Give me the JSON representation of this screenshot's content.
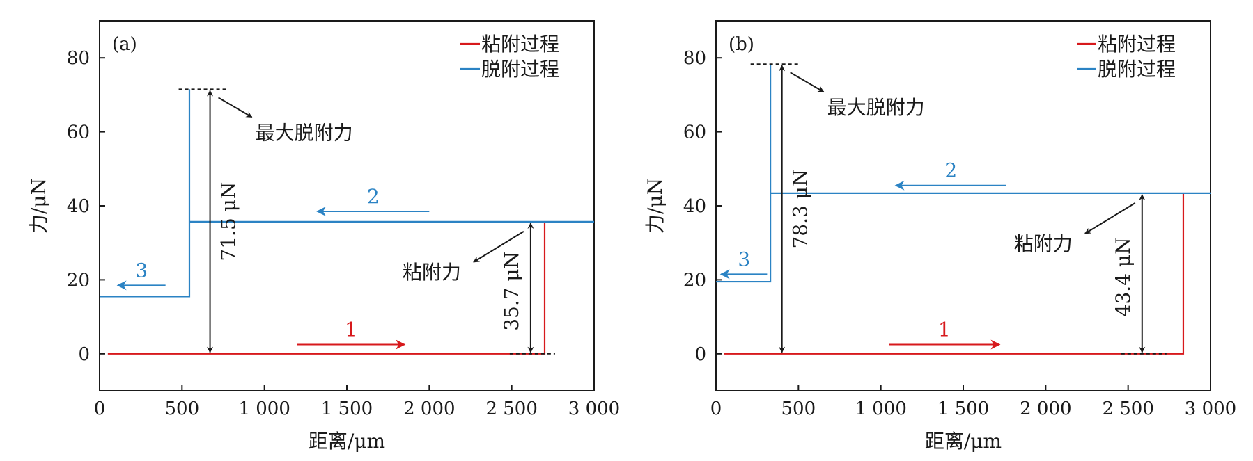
{
  "colors": {
    "adhesion": "#d7191c",
    "desorption": "#2b83c4",
    "annotation": "#1a1a1a"
  },
  "chart_data": [
    {
      "type": "line",
      "panel_label": "(a)",
      "xlabel": "距离/μm",
      "ylabel": "力/μN",
      "xlim": [
        0,
        3000
      ],
      "ylim": [
        -10,
        90
      ],
      "xticks": [
        0,
        500,
        1000,
        1500,
        2000,
        2500,
        3000
      ],
      "xtick_labels": [
        "0",
        "500",
        "1 000",
        "1 500",
        "2 000",
        "2 500",
        "3 000"
      ],
      "yticks": [
        0,
        20,
        40,
        60,
        80
      ],
      "ytick_labels": [
        "0",
        "20",
        "40",
        "60",
        "80"
      ],
      "legend": {
        "position": "top-right",
        "entries": [
          "粘附过程",
          "脱附过程"
        ]
      },
      "series": [
        {
          "name": "粘附过程",
          "color": "adhesion",
          "x": [
            50,
            2700,
            2700
          ],
          "y": [
            0,
            0,
            35.7
          ]
        },
        {
          "name": "脱附过程",
          "color": "desorption",
          "x": [
            3000,
            545,
            545,
            545,
            545,
            0
          ],
          "y": [
            35.7,
            35.7,
            71.5,
            71.5,
            15.5,
            15.5
          ]
        }
      ],
      "step_labels": [
        {
          "text": "1",
          "color": "adhesion",
          "x": [
            1200,
            1850
          ],
          "y": 2.5
        },
        {
          "text": "2",
          "color": "desorption",
          "x": [
            2000,
            1320
          ],
          "y": 38.5
        },
        {
          "text": "3",
          "color": "desorption",
          "x": [
            400,
            110
          ],
          "y": 18.5
        }
      ],
      "annotations": {
        "max_label": "最大脱附力",
        "max_value_label": "71.5 μN",
        "max_value": 71.5,
        "max_x": 670,
        "adh_label": "粘附力",
        "adh_value_label": "35.7 μN",
        "adh_value": 35.7,
        "adh_x": 2615
      }
    },
    {
      "type": "line",
      "panel_label": "(b)",
      "xlabel": "距离/μm",
      "ylabel": "力/μN",
      "xlim": [
        0,
        3000
      ],
      "ylim": [
        -10,
        90
      ],
      "xticks": [
        0,
        500,
        1000,
        1500,
        2000,
        2500,
        3000
      ],
      "xtick_labels": [
        "0",
        "500",
        "1 000",
        "1 500",
        "2 000",
        "2 500",
        "3 000"
      ],
      "yticks": [
        0,
        20,
        40,
        60,
        80
      ],
      "ytick_labels": [
        "0",
        "20",
        "40",
        "60",
        "80"
      ],
      "legend": {
        "position": "top-right",
        "entries": [
          "粘附过程",
          "脱附过程"
        ]
      },
      "series": [
        {
          "name": "粘附过程",
          "color": "adhesion",
          "x": [
            50,
            2835,
            2835
          ],
          "y": [
            0,
            0,
            43.4
          ]
        },
        {
          "name": "脱附过程",
          "color": "desorption",
          "x": [
            3000,
            330,
            330,
            330,
            330,
            0
          ],
          "y": [
            43.4,
            43.4,
            78.3,
            78.3,
            19.5,
            19.5
          ]
        }
      ],
      "step_labels": [
        {
          "text": "1",
          "color": "adhesion",
          "x": [
            1050,
            1720
          ],
          "y": 2.5
        },
        {
          "text": "2",
          "color": "desorption",
          "x": [
            1760,
            1090
          ],
          "y": 45.5
        },
        {
          "text": "3",
          "color": "desorption",
          "x": [
            310,
            30
          ],
          "y": 21.5
        }
      ],
      "annotations": {
        "max_label": "最大脱附力",
        "max_value_label": "78.3 μN",
        "max_value": 78.3,
        "max_x": 400,
        "adh_label": "粘附力",
        "adh_value_label": "43.4 μN",
        "adh_value": 43.4,
        "adh_x": 2585
      }
    }
  ]
}
